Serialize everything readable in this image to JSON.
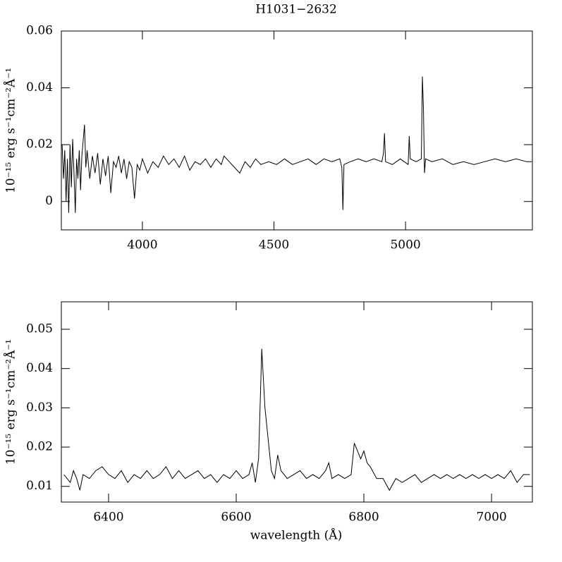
{
  "chart_data": [
    {
      "type": "line",
      "title": "H1031−2632",
      "y_label": "10⁻¹⁵ erg s⁻¹cm⁻²Å⁻¹",
      "xlim": [
        3692,
        5482
      ],
      "xticks": [
        4000,
        4500,
        5000
      ],
      "ylim": [
        -0.01,
        0.06
      ],
      "yticks": [
        0,
        0.02,
        0.04,
        0.06
      ],
      "x": [
        3695,
        3700,
        3705,
        3710,
        3715,
        3720,
        3725,
        3730,
        3735,
        3740,
        3745,
        3750,
        3755,
        3760,
        3765,
        3770,
        3780,
        3785,
        3790,
        3800,
        3810,
        3820,
        3830,
        3840,
        3850,
        3860,
        3870,
        3880,
        3890,
        3900,
        3910,
        3920,
        3930,
        3940,
        3950,
        3960,
        3970,
        3980,
        3990,
        4000,
        4020,
        4040,
        4060,
        4080,
        4100,
        4120,
        4140,
        4160,
        4180,
        4200,
        4220,
        4240,
        4260,
        4280,
        4300,
        4310,
        4330,
        4350,
        4370,
        4390,
        4410,
        4430,
        4450,
        4480,
        4510,
        4540,
        4570,
        4600,
        4630,
        4660,
        4690,
        4720,
        4750,
        4758,
        4762,
        4766,
        4790,
        4820,
        4850,
        4880,
        4910,
        4916,
        4920,
        4924,
        4950,
        4980,
        5010,
        5014,
        5018,
        5040,
        5060,
        5064,
        5068,
        5072,
        5076,
        5100,
        5140,
        5180,
        5220,
        5260,
        5300,
        5340,
        5380,
        5420,
        5460,
        5480
      ],
      "series": [
        {
          "color": "#000000",
          "values": [
            0.02,
            0.008,
            0.018,
            0.0,
            0.015,
            -0.004,
            0.02,
            0.005,
            0.022,
            0.01,
            -0.004,
            0.015,
            0.008,
            0.018,
            0.004,
            0.016,
            0.027,
            0.012,
            0.018,
            0.008,
            0.016,
            0.01,
            0.017,
            0.006,
            0.015,
            0.009,
            0.016,
            0.003,
            0.014,
            0.012,
            0.016,
            0.01,
            0.015,
            0.008,
            0.014,
            0.012,
            0.001,
            0.013,
            0.011,
            0.015,
            0.01,
            0.014,
            0.012,
            0.016,
            0.013,
            0.015,
            0.012,
            0.016,
            0.011,
            0.014,
            0.013,
            0.015,
            0.012,
            0.015,
            0.013,
            0.016,
            0.014,
            0.012,
            0.01,
            0.014,
            0.012,
            0.015,
            0.013,
            0.014,
            0.013,
            0.015,
            0.013,
            0.014,
            0.015,
            0.013,
            0.015,
            0.014,
            0.015,
            0.012,
            -0.003,
            0.013,
            0.014,
            0.015,
            0.014,
            0.015,
            0.014,
            0.017,
            0.024,
            0.014,
            0.013,
            0.015,
            0.013,
            0.023,
            0.015,
            0.014,
            0.015,
            0.044,
            0.033,
            0.01,
            0.015,
            0.014,
            0.015,
            0.013,
            0.014,
            0.013,
            0.014,
            0.015,
            0.014,
            0.015,
            0.014,
            0.014
          ]
        }
      ]
    },
    {
      "type": "line",
      "y_label": "10⁻¹⁵ erg s⁻¹cm⁻²Å⁻¹",
      "x_label": "wavelength (Å)",
      "xlim": [
        6326,
        7064
      ],
      "xticks": [
        6400,
        6600,
        6800,
        7000
      ],
      "ylim": [
        0.006,
        0.057
      ],
      "yticks": [
        0.01,
        0.02,
        0.03,
        0.04,
        0.05
      ],
      "x": [
        6330,
        6340,
        6345,
        6350,
        6355,
        6360,
        6370,
        6380,
        6390,
        6400,
        6410,
        6420,
        6430,
        6440,
        6450,
        6460,
        6470,
        6480,
        6490,
        6500,
        6510,
        6520,
        6530,
        6540,
        6550,
        6560,
        6570,
        6580,
        6590,
        6600,
        6610,
        6620,
        6625,
        6630,
        6635,
        6640,
        6645,
        6650,
        6655,
        6660,
        6665,
        6670,
        6680,
        6690,
        6700,
        6710,
        6720,
        6730,
        6740,
        6745,
        6750,
        6760,
        6770,
        6780,
        6785,
        6790,
        6795,
        6800,
        6805,
        6810,
        6820,
        6830,
        6840,
        6850,
        6860,
        6870,
        6880,
        6890,
        6900,
        6910,
        6920,
        6930,
        6940,
        6950,
        6960,
        6970,
        6980,
        6990,
        7000,
        7010,
        7020,
        7030,
        7040,
        7050,
        7060
      ],
      "series": [
        {
          "color": "#000000",
          "values": [
            0.013,
            0.011,
            0.014,
            0.012,
            0.009,
            0.013,
            0.012,
            0.014,
            0.015,
            0.013,
            0.012,
            0.014,
            0.011,
            0.013,
            0.012,
            0.014,
            0.012,
            0.013,
            0.015,
            0.012,
            0.014,
            0.012,
            0.013,
            0.014,
            0.012,
            0.013,
            0.011,
            0.013,
            0.012,
            0.014,
            0.012,
            0.013,
            0.016,
            0.011,
            0.017,
            0.045,
            0.03,
            0.022,
            0.014,
            0.012,
            0.018,
            0.014,
            0.012,
            0.013,
            0.014,
            0.012,
            0.013,
            0.012,
            0.014,
            0.016,
            0.012,
            0.013,
            0.012,
            0.013,
            0.021,
            0.019,
            0.017,
            0.019,
            0.016,
            0.015,
            0.012,
            0.012,
            0.009,
            0.012,
            0.011,
            0.012,
            0.013,
            0.011,
            0.012,
            0.013,
            0.012,
            0.013,
            0.012,
            0.013,
            0.012,
            0.013,
            0.012,
            0.013,
            0.012,
            0.013,
            0.012,
            0.014,
            0.011,
            0.013,
            0.013
          ]
        }
      ]
    }
  ]
}
